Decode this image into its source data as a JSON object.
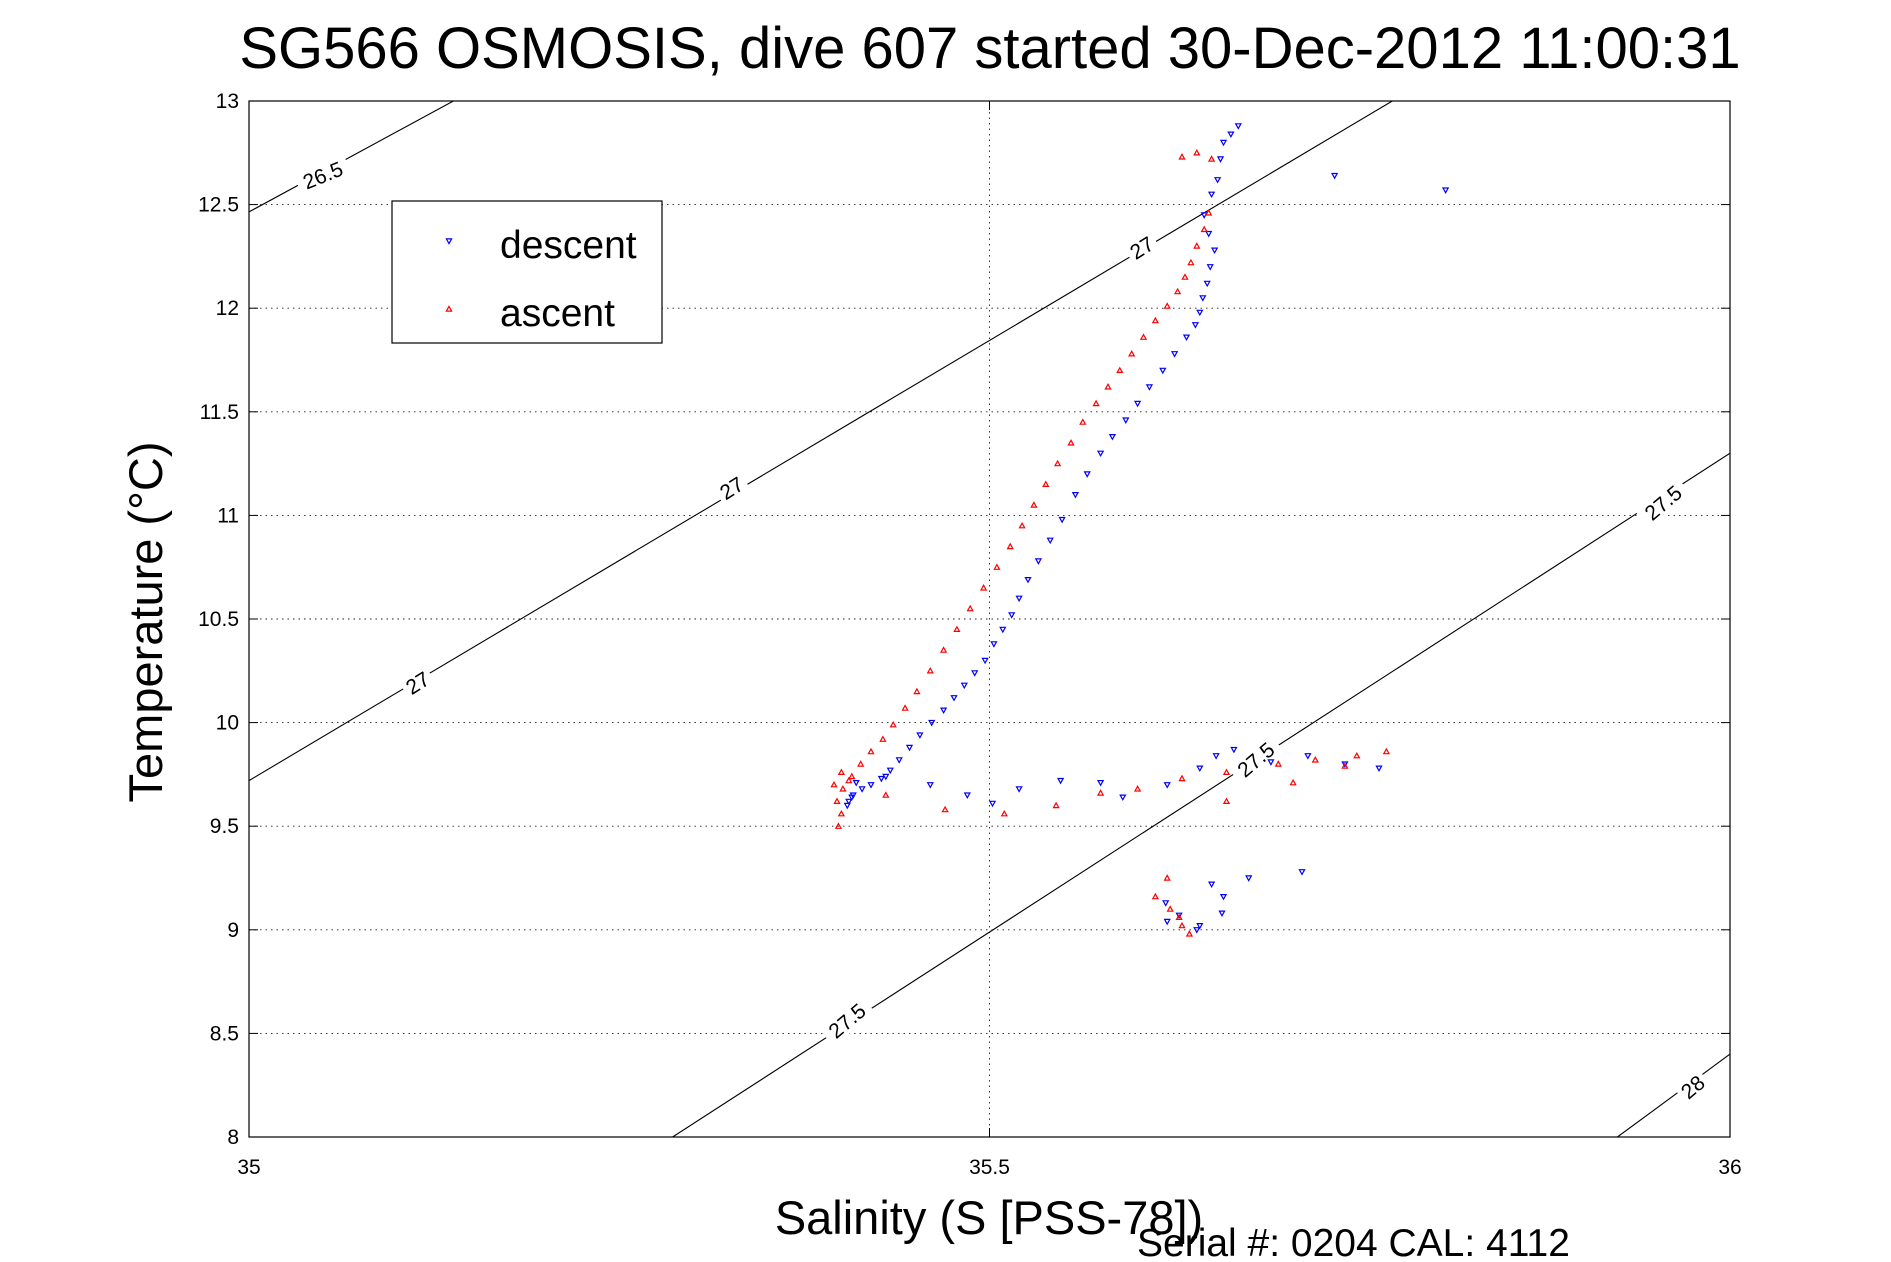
{
  "chart_data": {
    "type": "scatter",
    "title": "SG566 OSMOSIS, dive 607 started 30-Dec-2012 11:00:31",
    "xlabel": "Salinity (S [PSS-78])",
    "ylabel": "Temperature (°C)",
    "xlim": [
      35,
      36
    ],
    "ylim": [
      8,
      13
    ],
    "x_ticks": [
      "35",
      "35.5",
      "36"
    ],
    "y_ticks": [
      "8",
      "8.5",
      "9",
      "9.5",
      "10",
      "10.5",
      "11",
      "11.5",
      "12",
      "12.5",
      "13"
    ],
    "grid": "dotted",
    "legend_position": "upper-left",
    "footer": "Serial #: 0204  CAL: 4112",
    "isopycnals": [
      {
        "label": "26.5",
        "points": [
          [
            35.0,
            12.465
          ],
          [
            35.138,
            13.0
          ]
        ]
      },
      {
        "label": "27",
        "points": [
          [
            35.0,
            9.72
          ],
          [
            35.772,
            13.0
          ]
        ]
      },
      {
        "label": "27.5",
        "points": [
          [
            35.286,
            8.0
          ],
          [
            36.0,
            11.3
          ]
        ]
      },
      {
        "label": "28",
        "points": [
          [
            35.924,
            8.0
          ],
          [
            36.0,
            8.4
          ]
        ]
      }
    ],
    "isopycnal_labels": [
      {
        "text": "26.5",
        "x": 35.05,
        "y": 12.64,
        "angle": -22
      },
      {
        "text": "27",
        "x": 35.114,
        "y": 10.19,
        "angle": -32
      },
      {
        "text": "27",
        "x": 35.326,
        "y": 11.13,
        "angle": -32
      },
      {
        "text": "27",
        "x": 35.603,
        "y": 12.29,
        "angle": -32
      },
      {
        "text": "27.5",
        "x": 35.404,
        "y": 8.56,
        "angle": -40
      },
      {
        "text": "27.5",
        "x": 35.68,
        "y": 9.82,
        "angle": -40
      },
      {
        "text": "27.5",
        "x": 35.955,
        "y": 11.06,
        "angle": -40
      },
      {
        "text": "28",
        "x": 35.975,
        "y": 8.24,
        "angle": -40
      }
    ],
    "series": [
      {
        "name": "descent",
        "color": "#0000ff",
        "marker": "triangle-down",
        "x": [
          35.668,
          35.663,
          35.658,
          35.656,
          35.654,
          35.65,
          35.645,
          35.648,
          35.652,
          35.649,
          35.647,
          35.644,
          35.642,
          35.639,
          35.633,
          35.625,
          35.617,
          35.608,
          35.6,
          35.592,
          35.583,
          35.575,
          35.566,
          35.558,
          35.549,
          35.541,
          35.533,
          35.526,
          35.52,
          35.515,
          35.509,
          35.503,
          35.497,
          35.49,
          35.483,
          35.476,
          35.469,
          35.461,
          35.453,
          35.446,
          35.439,
          35.433,
          35.427,
          35.42,
          35.414,
          35.408,
          35.405,
          35.404,
          35.407,
          35.41,
          35.43,
          35.46,
          35.485,
          35.502,
          35.52,
          35.548,
          35.575,
          35.59,
          35.62,
          35.642,
          35.653,
          35.665,
          35.69,
          35.715,
          35.74,
          35.763,
          35.65,
          35.658,
          35.619,
          35.628,
          35.62,
          35.64,
          35.642,
          35.657,
          35.675,
          35.711,
          35.733,
          35.808
        ],
        "y": [
          12.88,
          12.84,
          12.8,
          12.72,
          12.62,
          12.55,
          12.45,
          12.36,
          12.28,
          12.2,
          12.12,
          12.05,
          11.98,
          11.92,
          11.86,
          11.78,
          11.7,
          11.62,
          11.54,
          11.46,
          11.38,
          11.3,
          11.2,
          11.1,
          10.98,
          10.88,
          10.78,
          10.69,
          10.6,
          10.52,
          10.45,
          10.38,
          10.3,
          10.24,
          10.18,
          10.12,
          10.06,
          10.0,
          9.94,
          9.88,
          9.82,
          9.77,
          9.73,
          9.7,
          9.68,
          9.65,
          9.62,
          9.6,
          9.64,
          9.71,
          9.74,
          9.7,
          9.65,
          9.61,
          9.68,
          9.72,
          9.71,
          9.64,
          9.7,
          9.78,
          9.84,
          9.87,
          9.81,
          9.84,
          9.8,
          9.78,
          9.22,
          9.16,
          9.13,
          9.07,
          9.04,
          9.0,
          9.02,
          9.08,
          9.25,
          9.28,
          12.64,
          12.57
        ]
      },
      {
        "name": "ascent",
        "color": "#ff0000",
        "marker": "triangle-up",
        "x": [
          35.65,
          35.64,
          35.63,
          35.648,
          35.645,
          35.64,
          35.636,
          35.632,
          35.627,
          35.62,
          35.612,
          35.604,
          35.596,
          35.588,
          35.58,
          35.572,
          35.563,
          35.555,
          35.546,
          35.538,
          35.53,
          35.522,
          35.514,
          35.505,
          35.496,
          35.487,
          35.478,
          35.469,
          35.46,
          35.451,
          35.443,
          35.435,
          35.428,
          35.42,
          35.413,
          35.407,
          35.401,
          35.397,
          35.4,
          35.398,
          35.395,
          35.4,
          35.405,
          35.43,
          35.47,
          35.51,
          35.545,
          35.575,
          35.6,
          35.63,
          35.66,
          35.695,
          35.72,
          35.748,
          35.768,
          35.74,
          35.705,
          35.66,
          35.62,
          35.622,
          35.63,
          35.635,
          35.628,
          35.612
        ],
        "y": [
          12.72,
          12.75,
          12.73,
          12.46,
          12.38,
          12.3,
          12.22,
          12.15,
          12.08,
          12.01,
          11.94,
          11.86,
          11.78,
          11.7,
          11.62,
          11.54,
          11.45,
          11.35,
          11.25,
          11.15,
          11.05,
          10.95,
          10.85,
          10.75,
          10.65,
          10.55,
          10.45,
          10.35,
          10.25,
          10.15,
          10.07,
          9.99,
          9.92,
          9.86,
          9.8,
          9.74,
          9.68,
          9.62,
          9.56,
          9.5,
          9.7,
          9.76,
          9.72,
          9.65,
          9.58,
          9.56,
          9.6,
          9.66,
          9.68,
          9.73,
          9.76,
          9.8,
          9.82,
          9.84,
          9.86,
          9.79,
          9.71,
          9.62,
          9.25,
          9.1,
          9.02,
          8.98,
          9.06,
          9.16
        ]
      }
    ]
  }
}
